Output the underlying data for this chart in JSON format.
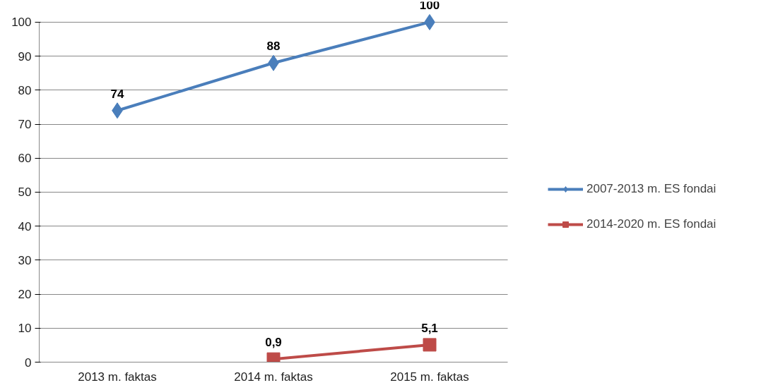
{
  "chart_data": {
    "type": "line",
    "categories": [
      "2013 m. faktas",
      "2014 m. faktas",
      "2015 m. faktas"
    ],
    "series": [
      {
        "name": "2007-2013 m. ES fondai",
        "color": "#4a7ebb",
        "marker": "diamond",
        "values": [
          74,
          88,
          100
        ],
        "value_labels": [
          "74",
          "88",
          "100"
        ]
      },
      {
        "name": "2014-2020 m. ES fondai",
        "color": "#be4b48",
        "marker": "square",
        "values": [
          null,
          0.9,
          5.1
        ],
        "value_labels": [
          null,
          "0,9",
          "5,1"
        ]
      }
    ],
    "ylim": [
      0,
      100
    ],
    "yticks": [
      0,
      10,
      20,
      30,
      40,
      50,
      60,
      70,
      80,
      90,
      100
    ],
    "grid": "y",
    "legend": "right",
    "line_style": "solid"
  }
}
